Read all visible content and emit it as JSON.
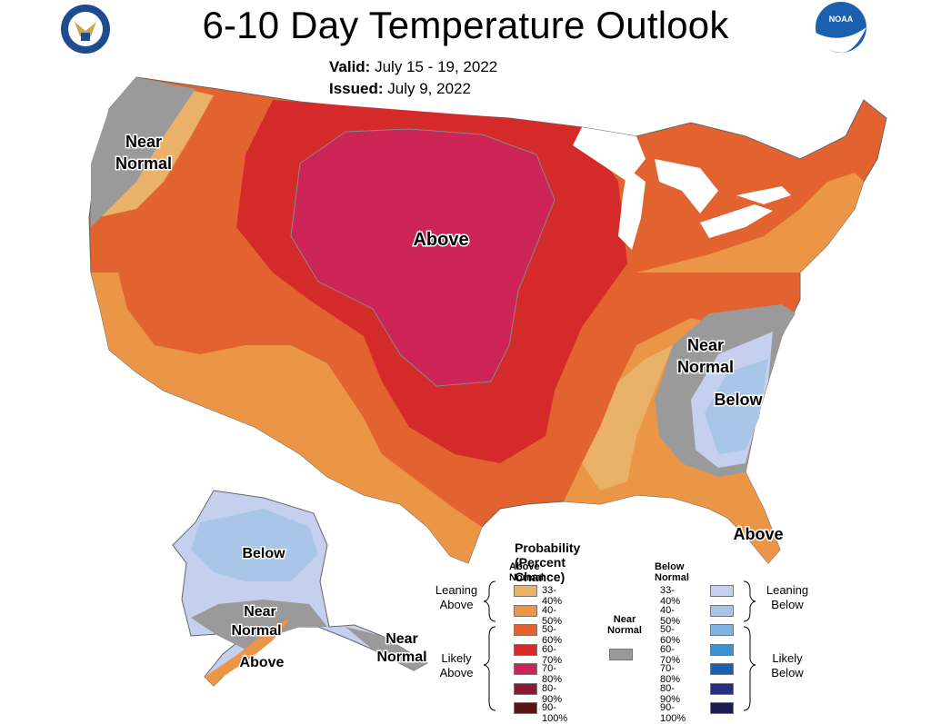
{
  "title": "6-10 Day Temperature Outlook",
  "valid_label": "Valid:",
  "valid_value": "July 15 - 19, 2022",
  "issued_label": "Issued:",
  "issued_value": "July 9, 2022",
  "logos": {
    "left": "commerce-seal",
    "right": "noaa-logo",
    "noaa_text": "NOAA"
  },
  "map_labels": {
    "nw_near_1": "Near",
    "nw_near_2": "Normal",
    "central_above": "Above",
    "se_near_1": "Near",
    "se_near_2": "Normal",
    "se_below": "Below",
    "fl_above": "Above",
    "ak_below": "Below",
    "ak_near_1": "Near",
    "ak_near_2": "Normal",
    "ak_above": "Above",
    "ak_se_near_1": "Near",
    "ak_se_near_2": "Normal"
  },
  "legend": {
    "title": "Probability (Percent Chance)",
    "above_header": "Above Normal",
    "below_header": "Below Normal",
    "near_header_1": "Near",
    "near_header_2": "Normal",
    "leaning_above_1": "Leaning",
    "leaning_above_2": "Above",
    "likely_above_1": "Likely",
    "likely_above_2": "Above",
    "leaning_below_1": "Leaning",
    "leaning_below_2": "Below",
    "likely_below_1": "Likely",
    "likely_below_2": "Below",
    "above": [
      {
        "label": "33-40%",
        "color": "#e9b268"
      },
      {
        "label": "40-50%",
        "color": "#eb9546"
      },
      {
        "label": "50-60%",
        "color": "#e2632f"
      },
      {
        "label": "60-70%",
        "color": "#d42a2a"
      },
      {
        "label": "70-80%",
        "color": "#cc2456"
      },
      {
        "label": "80-90%",
        "color": "#8b1a33"
      },
      {
        "label": "90-100%",
        "color": "#5a1414"
      }
    ],
    "below": [
      {
        "label": "33-40%",
        "color": "#c5cfee"
      },
      {
        "label": "40-50%",
        "color": "#a9c6e8"
      },
      {
        "label": "50-60%",
        "color": "#7fb3e3"
      },
      {
        "label": "60-70%",
        "color": "#3f8fd3"
      },
      {
        "label": "70-80%",
        "color": "#1a5fb0"
      },
      {
        "label": "80-90%",
        "color": "#232f82"
      },
      {
        "label": "90-100%",
        "color": "#1b1b4f"
      }
    ],
    "near_color": "#999999"
  },
  "colors": {
    "gray": "#9a9a9a",
    "lean_above": "#e9b268",
    "above_40": "#eb9546",
    "above_50": "#e2632f",
    "above_60": "#d42a2a",
    "above_70": "#cc2456",
    "lean_below": "#c5cfee",
    "below_40": "#a9c6e8"
  }
}
